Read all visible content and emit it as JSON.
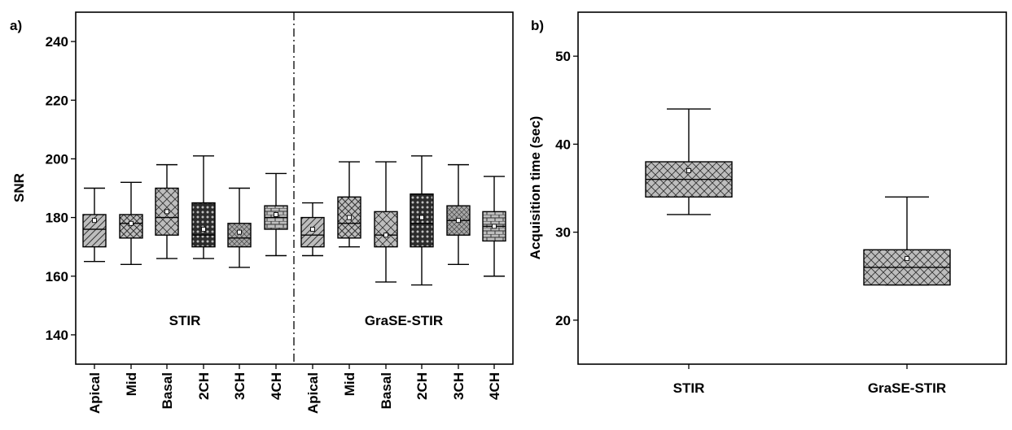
{
  "chart_data": [
    {
      "panel_label": "a)",
      "type": "box",
      "ylabel": "SNR",
      "ylim": [
        130,
        250
      ],
      "yticks": [
        140,
        160,
        180,
        200,
        220,
        240
      ],
      "groups": [
        "STIR",
        "GraSE-STIR"
      ],
      "categories": [
        "Apical",
        "Mid",
        "Basal",
        "2CH",
        "3CH",
        "4CH",
        "Apical",
        "Mid",
        "Basal",
        "2CH",
        "3CH",
        "4CH"
      ],
      "boxes": [
        {
          "group": "STIR",
          "category": "Apical",
          "pattern": "diag",
          "whisker_low": 165,
          "q1": 170,
          "median": 176,
          "q3": 181,
          "whisker_high": 190,
          "mean": 179
        },
        {
          "group": "STIR",
          "category": "Mid",
          "pattern": "crossdiag",
          "whisker_low": 164,
          "q1": 173,
          "median": 178,
          "q3": 181,
          "whisker_high": 192,
          "mean": 178
        },
        {
          "group": "STIR",
          "category": "Basal",
          "pattern": "cross",
          "whisker_low": 166,
          "q1": 174,
          "median": 180,
          "q3": 190,
          "whisker_high": 198,
          "mean": 182
        },
        {
          "group": "STIR",
          "category": "2CH",
          "pattern": "dots",
          "whisker_low": 166,
          "q1": 170,
          "median": 174,
          "q3": 185,
          "whisker_high": 201,
          "mean": 176
        },
        {
          "group": "STIR",
          "category": "3CH",
          "pattern": "weave",
          "whisker_low": 163,
          "q1": 170,
          "median": 173,
          "q3": 178,
          "whisker_high": 190,
          "mean": 175
        },
        {
          "group": "STIR",
          "category": "4CH",
          "pattern": "brick",
          "whisker_low": 167,
          "q1": 176,
          "median": 180,
          "q3": 184,
          "whisker_high": 195,
          "mean": 181
        },
        {
          "group": "GraSE-STIR",
          "category": "Apical",
          "pattern": "diag",
          "whisker_low": 167,
          "q1": 170,
          "median": 174,
          "q3": 180,
          "whisker_high": 185,
          "mean": 176
        },
        {
          "group": "GraSE-STIR",
          "category": "Mid",
          "pattern": "crossdiag",
          "whisker_low": 170,
          "q1": 173,
          "median": 178,
          "q3": 187,
          "whisker_high": 199,
          "mean": 180
        },
        {
          "group": "GraSE-STIR",
          "category": "Basal",
          "pattern": "cross",
          "whisker_low": 158,
          "q1": 170,
          "median": 174,
          "q3": 182,
          "whisker_high": 199,
          "mean": 174
        },
        {
          "group": "GraSE-STIR",
          "category": "2CH",
          "pattern": "dots",
          "whisker_low": 157,
          "q1": 170,
          "median": 178,
          "q3": 188,
          "whisker_high": 201,
          "mean": 180
        },
        {
          "group": "GraSE-STIR",
          "category": "3CH",
          "pattern": "weave",
          "whisker_low": 164,
          "q1": 174,
          "median": 179,
          "q3": 184,
          "whisker_high": 198,
          "mean": 179
        },
        {
          "group": "GraSE-STIR",
          "category": "4CH",
          "pattern": "brick",
          "whisker_low": 160,
          "q1": 172,
          "median": 177,
          "q3": 182,
          "whisker_high": 194,
          "mean": 177
        }
      ],
      "grid": false
    },
    {
      "panel_label": "b)",
      "type": "box",
      "ylabel": "Acquisition time (sec)",
      "ylim": [
        15,
        55
      ],
      "yticks": [
        20,
        30,
        40,
        50
      ],
      "categories": [
        "STIR",
        "GraSE-STIR"
      ],
      "boxes": [
        {
          "category": "STIR",
          "pattern": "cross",
          "whisker_low": 32,
          "q1": 34,
          "median": 36,
          "q3": 38,
          "whisker_high": 44,
          "mean": 37
        },
        {
          "category": "GraSE-STIR",
          "pattern": "cross",
          "whisker_low": 24,
          "q1": 24,
          "median": 26,
          "q3": 28,
          "whisker_high": 34,
          "mean": 27
        }
      ],
      "grid": false
    }
  ]
}
